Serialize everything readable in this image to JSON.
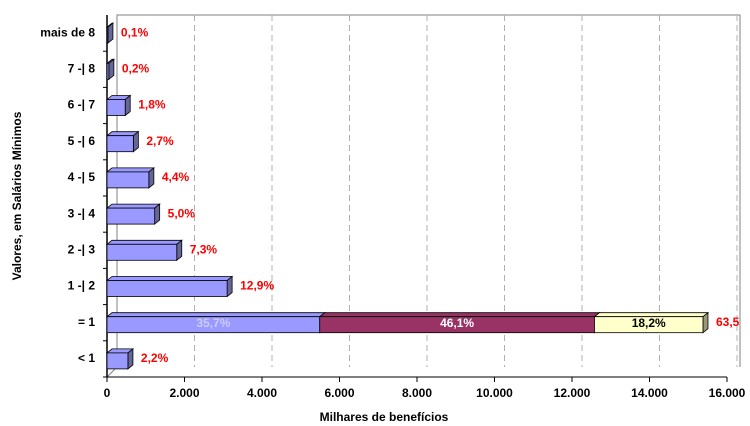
{
  "chart_data": {
    "type": "bar",
    "orientation": "horizontal",
    "stacked": true,
    "x_label": "Milhares de benefícios",
    "y_label": "Valores, em Salários Mínimos",
    "categories": [
      "< 1",
      "= 1",
      "1 -| 2",
      "2 -| 3",
      "3 -| 4",
      "4 -| 5",
      "5 -| 6",
      "6 -| 7",
      "7 -| 8",
      "mais de 8"
    ],
    "series": [
      {
        "color": "#9999ff",
        "side": "#666699",
        "label_color": "#ccccff",
        "values": [
          540,
          5490,
          3100,
          1800,
          1230,
          1080,
          680,
          470,
          48,
          24
        ]
      },
      {
        "color": "#993366",
        "side": "#662244",
        "label_color": "#ffffff",
        "values": [
          null,
          7090,
          null,
          null,
          null,
          null,
          null,
          null,
          null,
          null
        ]
      },
      {
        "color": "#ffffcc",
        "side": "#999977",
        "label_color": "#000000",
        "values": [
          null,
          2800,
          null,
          null,
          null,
          null,
          null,
          null,
          null,
          null
        ]
      }
    ],
    "shares": {
      "values": [
        2.2,
        63.5,
        12.9,
        7.3,
        5.0,
        4.4,
        2.7,
        1.8,
        0.2,
        0.1
      ],
      "value_labels": [
        "2,2%",
        "63,5",
        "12,9%",
        "7,3%",
        "5,0%",
        "4,4%",
        "2,7%",
        "1,8%",
        "0,2%",
        "0,1%"
      ]
    },
    "segment_shares": {
      "values": [
        35.7,
        46.1,
        18.2
      ],
      "value_labels": [
        "35,7%",
        "46,1%",
        "18,2%"
      ]
    },
    "xlim": [
      0,
      16000
    ],
    "xticks": [
      0,
      {
        "value": 2000,
        "label": "2.000"
      },
      {
        "value": 4000,
        "label": "4.000"
      },
      {
        "value": 6000,
        "label": "6.000"
      },
      {
        "value": 8000,
        "label": "8.000"
      },
      {
        "value": 10000,
        "label": "10.000"
      },
      {
        "value": 12000,
        "label": "12.000"
      },
      {
        "value": 14000,
        "label": "14.000"
      },
      {
        "value": 16000,
        "label": "16.000"
      }
    ],
    "grid": true
  }
}
